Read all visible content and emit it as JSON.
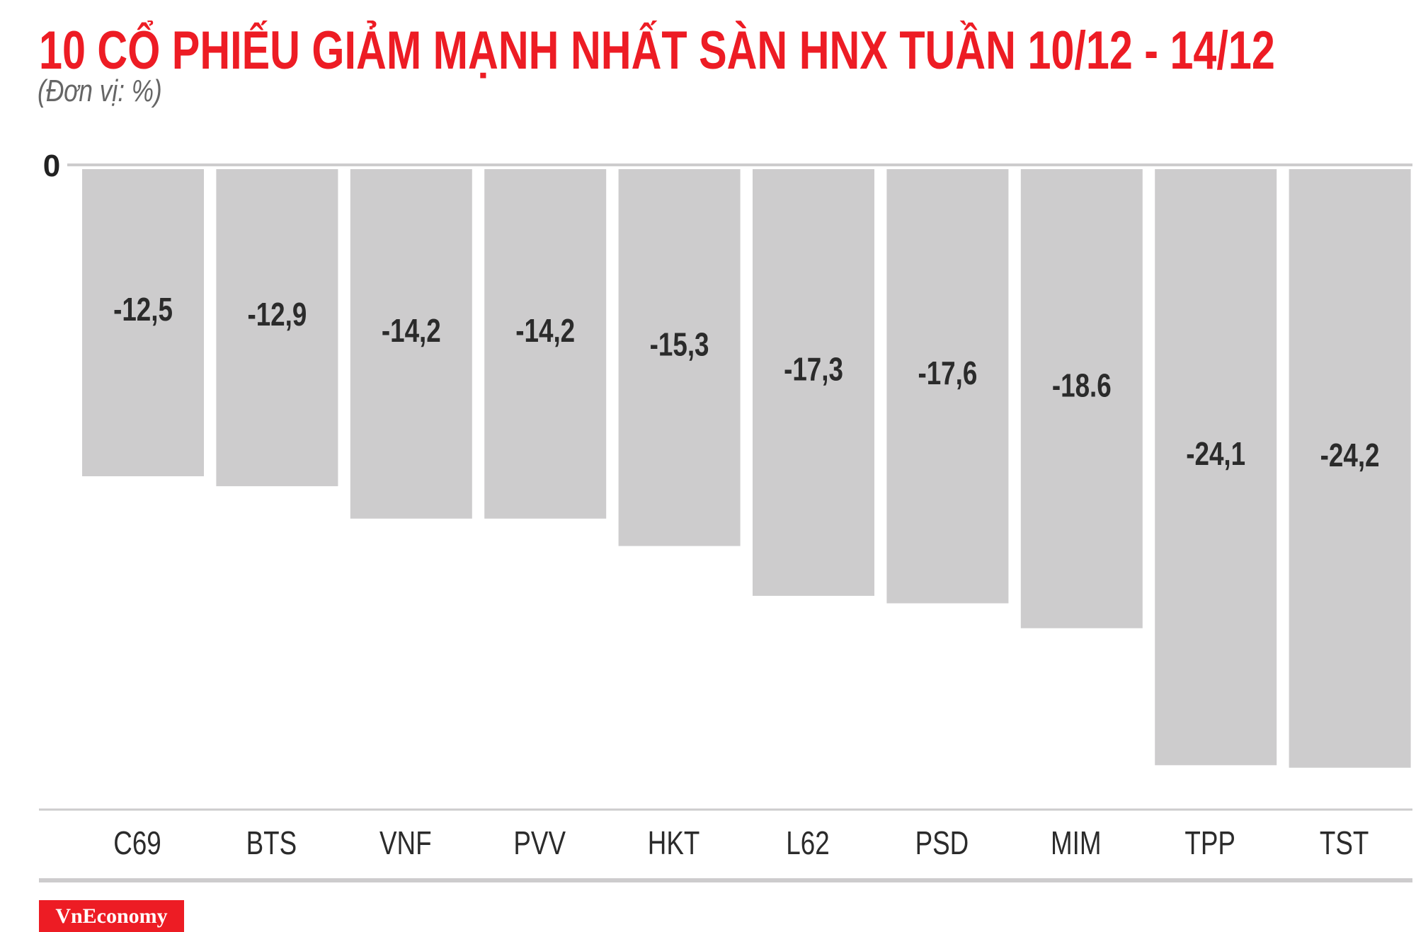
{
  "chart_data": {
    "type": "bar",
    "title": "10 CỔ PHIẾU GIẢM MẠNH NHẤT SÀN HNX TUẦN 10/12 - 14/12",
    "subtitle": "(Đơn vị: %)",
    "categories": [
      "C69",
      "BTS",
      "VNF",
      "PVV",
      "HKT",
      "L62",
      "PSD",
      "MIM",
      "TPP",
      "TST"
    ],
    "values": [
      -12.5,
      -12.9,
      -14.2,
      -14.2,
      -15.3,
      -17.3,
      -17.6,
      -18.6,
      -24.1,
      -24.2
    ],
    "data_labels": [
      "-12,5",
      "-12,9",
      "-14,2",
      "-14,2",
      "-15,3",
      "-17,3",
      "-17,6",
      "-18.6",
      "-24,1",
      "-24,2"
    ],
    "y_tick_labels": [
      "0"
    ],
    "ylim": [
      -25,
      0
    ],
    "grid": false,
    "bar_color": "#cdcccd",
    "title_color": "#ed1c24"
  },
  "logo": "VnEconomy"
}
